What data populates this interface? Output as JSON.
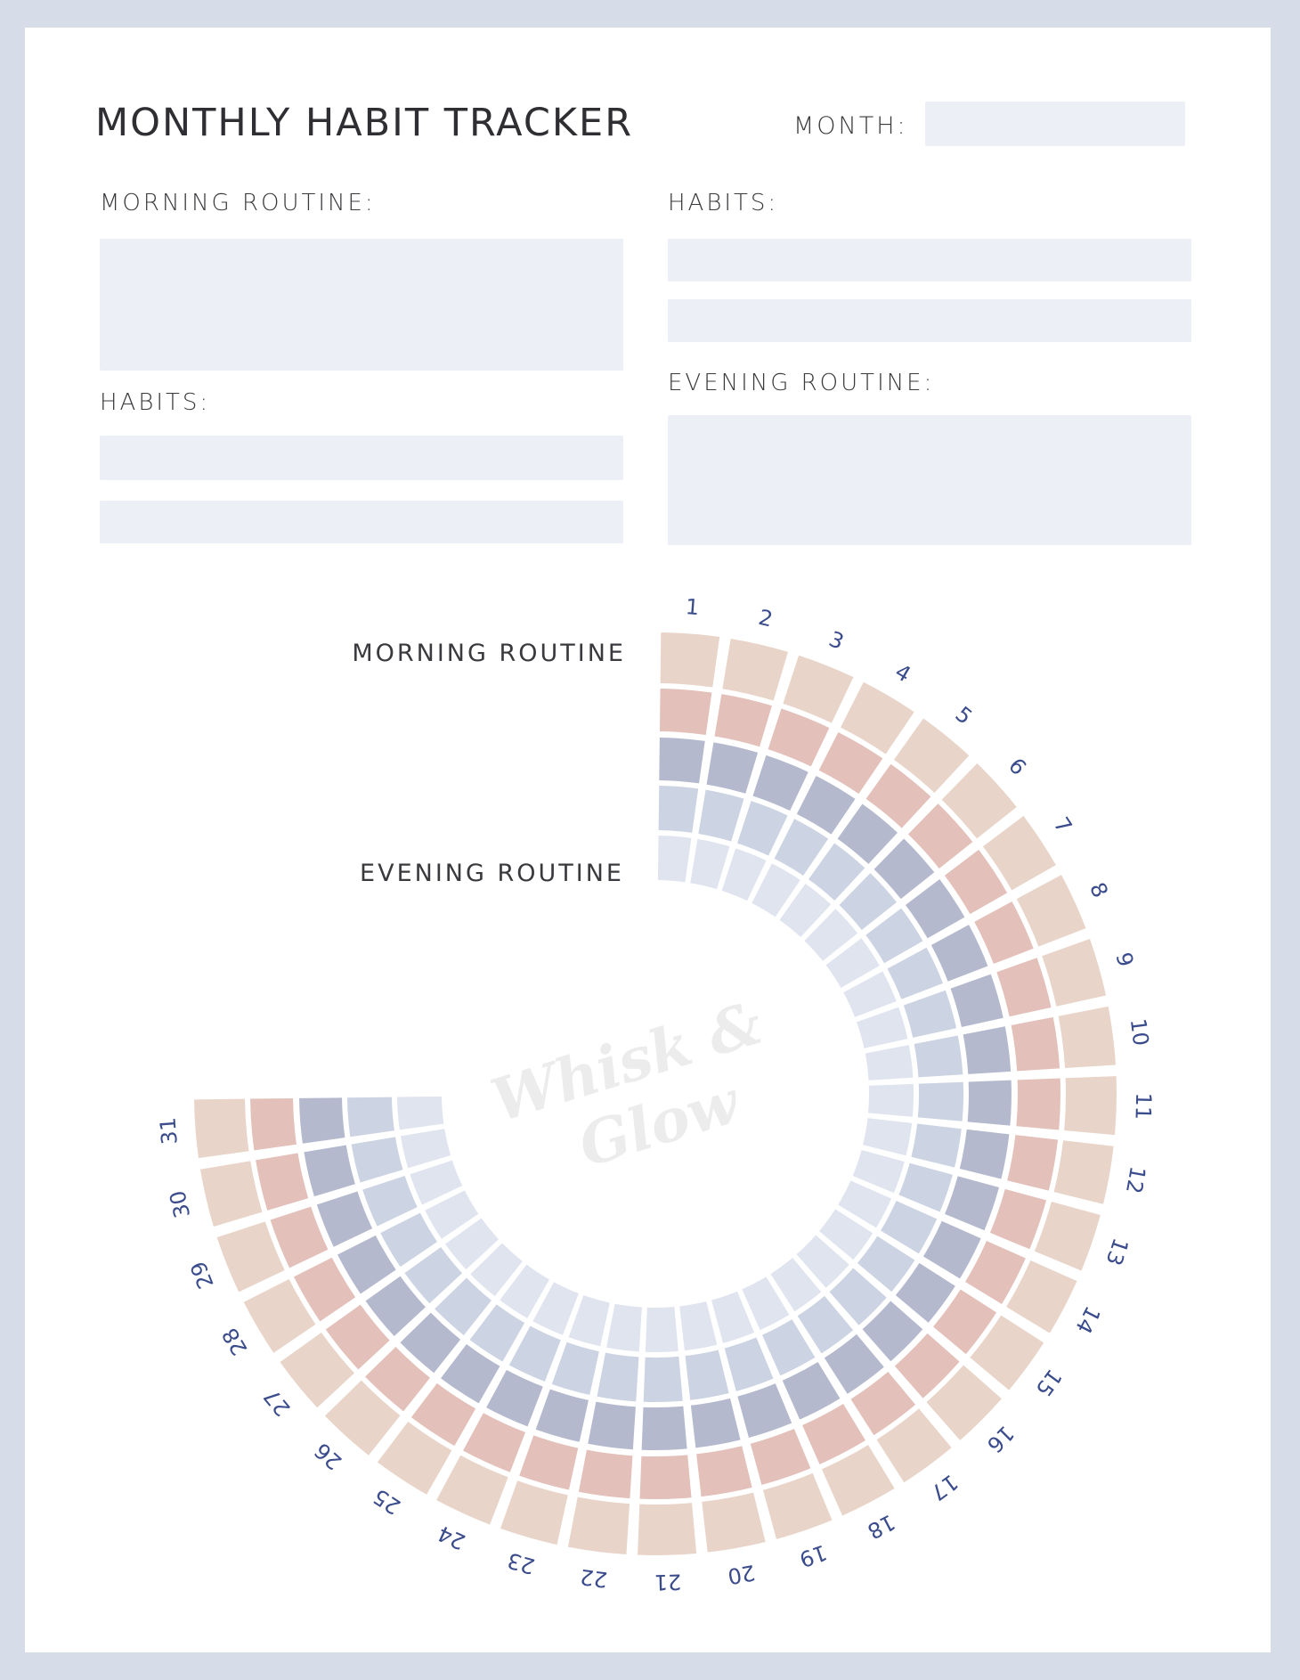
{
  "header": {
    "title": "MONTHLY HABIT TRACKER",
    "month_label": "MONTH:",
    "month_value": ""
  },
  "left_column": {
    "morning_label": "MORNING ROUTINE:",
    "habits_label": "HABITS:"
  },
  "right_column": {
    "habits_label": "HABITS:",
    "evening_label": "EVENING ROUTINE:"
  },
  "wheel": {
    "morning_label": "MORNING ROUTINE",
    "evening_label": "EVENING ROUTINE",
    "days": [
      "1",
      "2",
      "3",
      "4",
      "5",
      "6",
      "7",
      "8",
      "9",
      "10",
      "11",
      "12",
      "13",
      "14",
      "15",
      "16",
      "17",
      "18",
      "19",
      "20",
      "21",
      "22",
      "23",
      "24",
      "25",
      "26",
      "27",
      "28",
      "29",
      "30",
      "31"
    ],
    "ring_colors": [
      "#e8d4c8",
      "#e3c0b9",
      "#b4b9cd",
      "#ccd3e2",
      "#dfe4ef"
    ],
    "number_color": "#3b4c8c"
  },
  "watermark": {
    "line1": "Whisk &",
    "line2": "Glow"
  },
  "colors": {
    "frame": "#d6dce8",
    "field": "#eceff6"
  }
}
